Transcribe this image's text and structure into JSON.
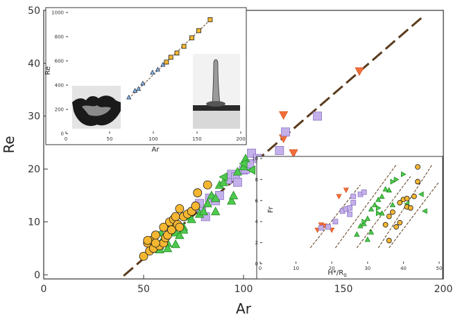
{
  "chart_data": [
    {
      "id": "main",
      "type": "scatter",
      "xlabel": "Ar",
      "ylabel": "Re",
      "xlim": [
        0,
        200
      ],
      "ylim": [
        0,
        50
      ],
      "x_ticks": [
        "0",
        "50",
        "100",
        "150",
        "200"
      ],
      "y_ticks": [
        "0",
        "10",
        "20",
        "30",
        "40",
        "50"
      ],
      "grid": false,
      "colors": {
        "red": "#f26d3d",
        "purple": "#c4b0ea",
        "green": "#4ec94e",
        "yellow": "#f5b731",
        "fit_line": "#5a3b1c"
      },
      "fit_line": {
        "x": [
          40,
          190
        ],
        "y": [
          -0.2,
          48.9
        ]
      },
      "series": [
        {
          "marker": "triangle-down",
          "color": "red",
          "points": [
            [
              120,
              30.2
            ],
            [
              120,
              25.8
            ],
            [
              125,
              23
            ],
            [
              158,
              38.5
            ]
          ]
        },
        {
          "marker": "square",
          "color": "purple",
          "points": [
            [
              77,
              13
            ],
            [
              78,
              13.5
            ],
            [
              79,
              12
            ],
            [
              81,
              11
            ],
            [
              83,
              14.5
            ],
            [
              86,
              14
            ],
            [
              88,
              15
            ],
            [
              92,
              18
            ],
            [
              94,
              19
            ],
            [
              96,
              18.5
            ],
            [
              97,
              17.5
            ],
            [
              100,
              19.8
            ],
            [
              101,
              20
            ],
            [
              103,
              21
            ],
            [
              104,
              23
            ],
            [
              107,
              22
            ],
            [
              118,
              23.5
            ],
            [
              121,
              27
            ],
            [
              137,
              30
            ]
          ]
        },
        {
          "marker": "triangle",
          "color": "green",
          "points": [
            [
              58,
              4.8
            ],
            [
              60,
              7
            ],
            [
              62,
              6
            ],
            [
              64,
              9.5
            ],
            [
              66,
              8
            ],
            [
              68,
              7.5
            ],
            [
              70,
              9
            ],
            [
              72,
              11
            ],
            [
              74,
              10.5
            ],
            [
              76,
              13
            ],
            [
              78,
              11.5
            ],
            [
              80,
              12
            ],
            [
              82,
              13.5
            ],
            [
              84,
              15
            ],
            [
              86,
              14.5
            ],
            [
              88,
              17
            ],
            [
              90,
              17.5
            ],
            [
              94,
              14
            ],
            [
              95,
              15
            ],
            [
              58,
              5.5
            ],
            [
              62,
              5
            ],
            [
              66,
              5.8
            ],
            [
              70,
              8.5
            ],
            [
              97,
              19.5
            ],
            [
              100,
              20.5
            ],
            [
              101,
              22
            ],
            [
              86,
              12
            ]
          ]
        },
        {
          "marker": "triangle-left",
          "color": "green",
          "points": [
            [
              55,
              6.5
            ],
            [
              58,
              7.8
            ],
            [
              90,
              18.5
            ],
            [
              100,
              21
            ],
            [
              104,
              19.8
            ],
            [
              58,
              5.8
            ]
          ]
        },
        {
          "marker": "circle",
          "color": "yellow",
          "points": [
            [
              50,
              3.5
            ],
            [
              52,
              6
            ],
            [
              53,
              4.5
            ],
            [
              54,
              6.5
            ],
            [
              55,
              5
            ],
            [
              56,
              7.5
            ],
            [
              58,
              5.5
            ],
            [
              60,
              6
            ],
            [
              60,
              9
            ],
            [
              61,
              7
            ],
            [
              62,
              7.5
            ],
            [
              63,
              10
            ],
            [
              64,
              8.5
            ],
            [
              65,
              10.5
            ],
            [
              66,
              11
            ],
            [
              67,
              9.5
            ],
            [
              68,
              12.5
            ],
            [
              68,
              9
            ],
            [
              70,
              11
            ],
            [
              72,
              11.5
            ],
            [
              74,
              12
            ],
            [
              76,
              13
            ],
            [
              77,
              15.5
            ],
            [
              82,
              17
            ],
            [
              52,
              6.5
            ],
            [
              56,
              6
            ]
          ]
        }
      ]
    },
    {
      "id": "inset_top",
      "type": "scatter",
      "xlabel": "Ar",
      "ylabel": "Re",
      "xlim": [
        0,
        200
      ],
      "ylim": [
        0,
        1000
      ],
      "x_ticks": [
        "0",
        "50",
        "100",
        "150",
        "200"
      ],
      "y_ticks": [
        "0",
        "200",
        "400",
        "600",
        "800",
        "1000"
      ],
      "fit_line": {
        "x": [
          72,
          168
        ],
        "y": [
          290,
          960
        ]
      },
      "series": [
        {
          "marker": "triangle",
          "color": "blue",
          "points": [
            [
              72,
              300
            ],
            [
              79,
              355
            ],
            [
              83,
              370
            ],
            [
              88,
              415
            ],
            [
              99,
              505
            ],
            [
              105,
              530
            ],
            [
              111,
              570
            ]
          ]
        },
        {
          "marker": "square",
          "color": "yellow",
          "points": [
            [
              115,
              590
            ],
            [
              120,
              630
            ],
            [
              127,
              665
            ],
            [
              135,
              720
            ],
            [
              144,
              790
            ],
            [
              152,
              850
            ],
            [
              165,
              940
            ]
          ]
        }
      ]
    },
    {
      "id": "inset_bottom",
      "type": "scatter",
      "xlabel": "H*/R",
      "xlabel_sub": "0",
      "ylabel": "Fr",
      "xlim": [
        0,
        50
      ],
      "ylim": [
        0,
        10
      ],
      "x_ticks": [
        "0",
        "10",
        "20",
        "30",
        "40",
        "50"
      ],
      "y_ticks": [
        "0",
        "2",
        "4",
        "6",
        "8",
        "10"
      ],
      "fit_lines": [
        {
          "x": [
            14,
            28
          ],
          "y": [
            1.5,
            7.5
          ]
        },
        {
          "x": [
            21,
            38
          ],
          "y": [
            1.5,
            9.4
          ]
        },
        {
          "x": [
            27,
            42
          ],
          "y": [
            1.5,
            8.3
          ]
        },
        {
          "x": [
            33,
            48
          ],
          "y": [
            1.5,
            9.4
          ]
        },
        {
          "x": [
            36,
            50
          ],
          "y": [
            1.5,
            7.8
          ]
        }
      ],
      "series": [
        {
          "marker": "triangle-down",
          "color": "red",
          "points": [
            [
              16,
              3.2
            ],
            [
              17,
              3.7
            ],
            [
              18,
              3.6
            ],
            [
              20,
              3.2
            ],
            [
              22,
              6.4
            ],
            [
              24,
              7
            ]
          ]
        },
        {
          "marker": "square",
          "color": "purple",
          "points": [
            [
              17,
              3.4
            ],
            [
              19,
              3.5
            ],
            [
              21,
              4
            ],
            [
              23,
              5
            ],
            [
              24,
              5.2
            ],
            [
              25,
              5.3
            ],
            [
              26,
              6.4
            ],
            [
              28,
              6.6
            ],
            [
              29,
              6.8
            ],
            [
              25,
              4.7
            ],
            [
              26,
              5.8
            ]
          ]
        },
        {
          "marker": "triangle",
          "color": "green",
          "points": [
            [
              27,
              2.8
            ],
            [
              28,
              3.6
            ],
            [
              29,
              3.8
            ],
            [
              30,
              4.3
            ],
            [
              31,
              5.2
            ],
            [
              32,
              5.6
            ],
            [
              33,
              6.1
            ],
            [
              34,
              6.4
            ],
            [
              35,
              7.1
            ],
            [
              36,
              7
            ],
            [
              30,
              2.3
            ],
            [
              31,
              3
            ],
            [
              34,
              4.8
            ],
            [
              37,
              5.6
            ]
          ]
        },
        {
          "marker": "triangle-right",
          "color": "green",
          "points": [
            [
              29,
              4
            ],
            [
              33,
              5.3
            ],
            [
              37,
              7.8
            ],
            [
              38,
              8
            ],
            [
              40,
              8.5
            ],
            [
              33,
              4.8
            ]
          ]
        },
        {
          "marker": "triangle-left",
          "color": "green",
          "points": [
            [
              41,
              5.7
            ],
            [
              45,
              6.6
            ],
            [
              46,
              5
            ]
          ]
        },
        {
          "marker": "circle",
          "color": "yellow",
          "points": [
            [
              35,
              3.7
            ],
            [
              36,
              4.5
            ],
            [
              37,
              4.9
            ],
            [
              38,
              3.5
            ],
            [
              39,
              5.8
            ],
            [
              40,
              6.1
            ],
            [
              41,
              5.4
            ],
            [
              42,
              5.3
            ],
            [
              43,
              6.4
            ],
            [
              44,
              7.8
            ],
            [
              44,
              9.2
            ],
            [
              41,
              6.2
            ],
            [
              36,
              2.2
            ],
            [
              39,
              3.9
            ]
          ]
        }
      ]
    }
  ]
}
